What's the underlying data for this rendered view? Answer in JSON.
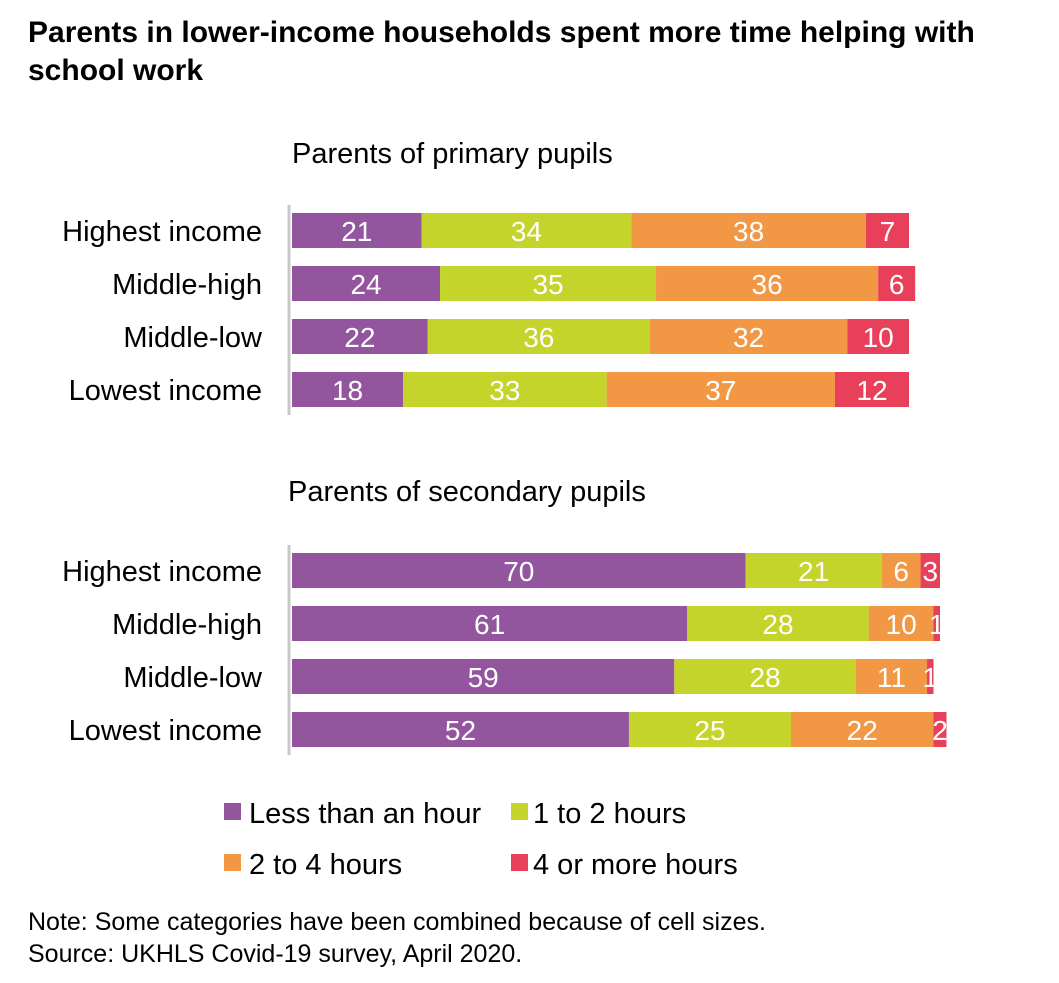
{
  "title": "Parents in lower-income households spent more time helping with school work",
  "notes": {
    "note": "Note: Some categories have been combined because of cell sizes.",
    "source": "Source: UKHLS Covid-19 survey, April 2020."
  },
  "colors": {
    "less_than_hour": "#93569e",
    "one_to_two": "#c4d42a",
    "two_to_four": "#f29743",
    "four_plus": "#e8405a",
    "axis": "#c8c8c8"
  },
  "chart_data": [
    {
      "type": "bar",
      "orientation": "horizontal",
      "stacked": true,
      "title": "Parents of primary pupils",
      "categories": [
        "Highest income",
        "Middle-high",
        "Middle-low",
        "Lowest income"
      ],
      "series": [
        {
          "name": "Less than an hour",
          "values": [
            21,
            24,
            22,
            18
          ]
        },
        {
          "name": "1 to 2 hours",
          "values": [
            34,
            35,
            36,
            33
          ]
        },
        {
          "name": "2 to 4 hours",
          "values": [
            38,
            36,
            32,
            37
          ]
        },
        {
          "name": "4 or more hours",
          "values": [
            7,
            6,
            10,
            12
          ]
        }
      ],
      "xlim": [
        0,
        100
      ],
      "grid": false,
      "legend": "bottom"
    },
    {
      "type": "bar",
      "orientation": "horizontal",
      "stacked": true,
      "title": "Parents of secondary pupils",
      "categories": [
        "Highest income",
        "Middle-high",
        "Middle-low",
        "Lowest income"
      ],
      "series": [
        {
          "name": "Less than an hour",
          "values": [
            70,
            61,
            59,
            52
          ]
        },
        {
          "name": "1 to 2 hours",
          "values": [
            21,
            28,
            28,
            25
          ]
        },
        {
          "name": "2 to 4 hours",
          "values": [
            6,
            10,
            11,
            22
          ]
        },
        {
          "name": "4 or more hours",
          "values": [
            3,
            1,
            1,
            2
          ]
        }
      ],
      "xlim": [
        0,
        100
      ],
      "grid": false,
      "legend": "bottom"
    }
  ],
  "legend": {
    "items": [
      {
        "label": "Less than an hour",
        "color_key": "less_than_hour"
      },
      {
        "label": "1 to 2 hours",
        "color_key": "one_to_two"
      },
      {
        "label": "2 to 4 hours",
        "color_key": "two_to_four"
      },
      {
        "label": "4 or more hours",
        "color_key": "four_plus"
      }
    ]
  }
}
